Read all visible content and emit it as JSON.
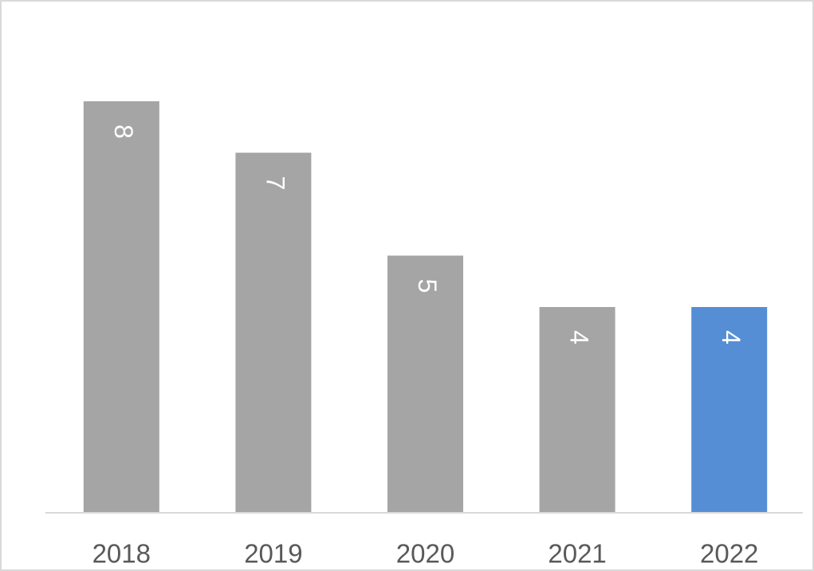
{
  "chart_data": {
    "type": "bar",
    "categories": [
      "2018",
      "2019",
      "2020",
      "2021",
      "2022"
    ],
    "values": [
      8,
      7,
      5,
      4,
      4
    ],
    "colors": [
      "#a5a5a5",
      "#a5a5a5",
      "#a5a5a5",
      "#a5a5a5",
      "#558ed5"
    ],
    "ylim": [
      0,
      9
    ]
  }
}
